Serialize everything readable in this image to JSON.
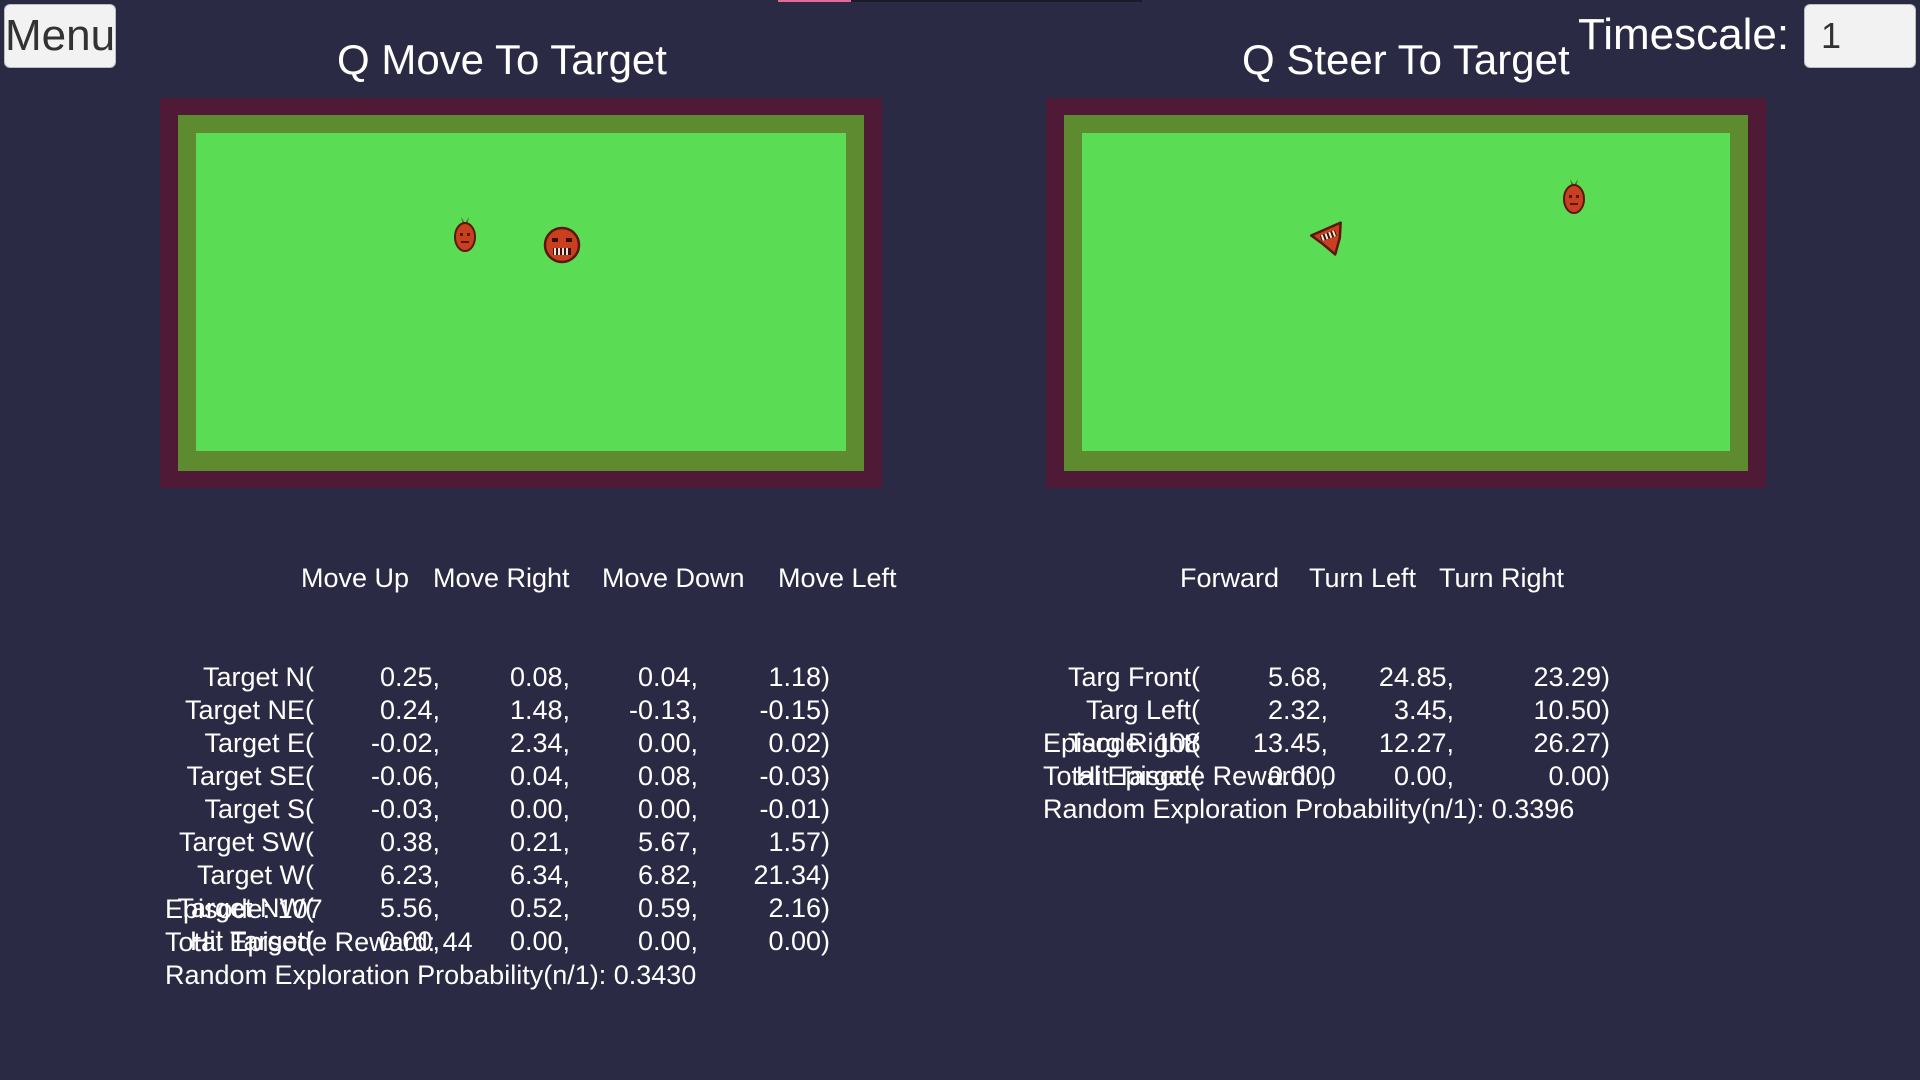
{
  "ui": {
    "menu_label": "Menu",
    "timescale_label": "Timescale:",
    "timescale_value": "1",
    "progress": 0.2
  },
  "left_panel": {
    "title": "Q Move To Target",
    "actions": [
      "Move Up",
      "Move Right",
      "Move Down",
      "Move Left"
    ],
    "rows": [
      {
        "state": "Target N(",
        "values": [
          "0.25,",
          "0.08,",
          "0.04,",
          "1.18)"
        ]
      },
      {
        "state": "Target NE(",
        "values": [
          "0.24,",
          "1.48,",
          "-0.13,",
          "-0.15)"
        ]
      },
      {
        "state": "Target E(",
        "values": [
          "-0.02,",
          "2.34,",
          "0.00,",
          "0.02)"
        ]
      },
      {
        "state": "Target SE(",
        "values": [
          "-0.06,",
          "0.04,",
          "0.08,",
          "-0.03)"
        ]
      },
      {
        "state": "Target S(",
        "values": [
          "-0.03,",
          "0.00,",
          "0.00,",
          "-0.01)"
        ]
      },
      {
        "state": "Target SW(",
        "values": [
          "0.38,",
          "0.21,",
          "5.67,",
          "1.57)"
        ]
      },
      {
        "state": "Target W(",
        "values": [
          "6.23,",
          "6.34,",
          "6.82,",
          "21.34)"
        ]
      },
      {
        "state": "Target NW(",
        "values": [
          "5.56,",
          "0.52,",
          "0.59,",
          "2.16)"
        ]
      },
      {
        "state": "Hit Target(",
        "values": [
          "0.00,",
          "0.00,",
          "0.00,",
          "0.00)"
        ]
      }
    ],
    "episode": "Episode: 107",
    "reward": "Total Episode Reward: 44",
    "exploration": "Random Exploration Probability(n/1): 0.3430"
  },
  "right_panel": {
    "title": "Q Steer To Target",
    "actions": [
      "Forward",
      "Turn Left",
      "Turn Right"
    ],
    "rows": [
      {
        "state": "Targ Front(",
        "values": [
          "5.68,",
          "24.85,",
          "23.29)"
        ]
      },
      {
        "state": "Targ Left(",
        "values": [
          "2.32,",
          "3.45,",
          "10.50)"
        ]
      },
      {
        "state": "Targ Right(",
        "values": [
          "13.45,",
          "12.27,",
          "26.27)"
        ]
      },
      {
        "state": "Hit Target(",
        "values": [
          "0.00,",
          "0.00,",
          "0.00)"
        ]
      }
    ],
    "episode": "Episode: 108",
    "reward": "Total Episode Reward: 0",
    "exploration": "Random Exploration Probability(n/1): 0.3396"
  },
  "colors": {
    "background": "#2b2a45",
    "field_grass": "#5bdc55",
    "field_border": "#5e8a30",
    "field_wall": "#4e1a35",
    "progress_accent": "#e56a96"
  },
  "sprites": {
    "target": "carrot-icon",
    "agent_left": "round-critter-icon",
    "agent_right": "steering-critter-icon"
  }
}
